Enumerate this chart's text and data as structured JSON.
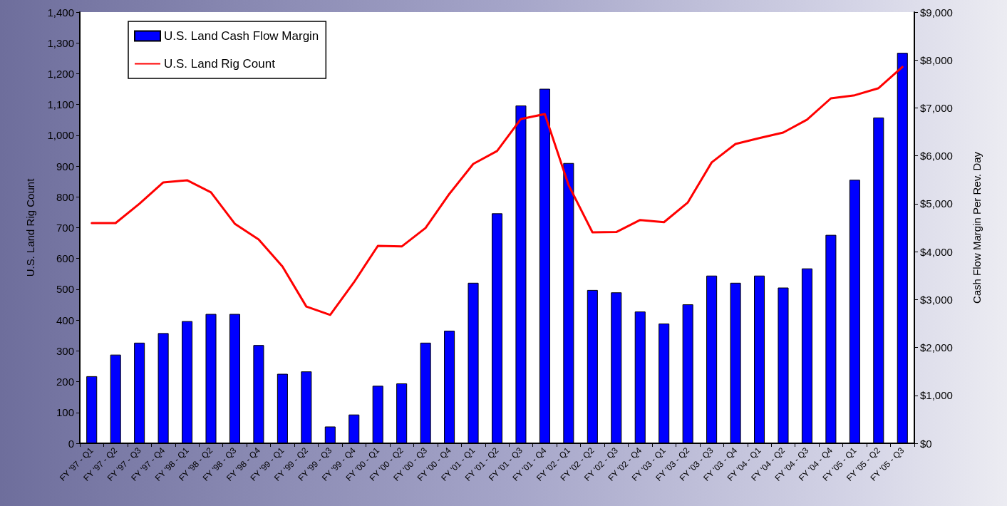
{
  "chart_data": {
    "type": "bar",
    "categories": [
      "FY '97 - Q1",
      "FY '97 - Q2",
      "FY '97 - Q3",
      "FY '97 - Q4",
      "FY '98 - Q1",
      "FY '98 - Q2",
      "FY '98 - Q3",
      "FY '98 - Q4",
      "FY '99 - Q1",
      "FY '99 - Q2",
      "FY '99 - Q3",
      "FY '99 - Q4",
      "FY '00 - Q1",
      "FY '00 - Q2",
      "FY '00 - Q3",
      "FY '00 - Q4",
      "FY '01 - Q1",
      "FY '01 - Q2",
      "FY '01 - Q3",
      "FY '01 - Q4",
      "FY '02 - Q1",
      "FY '02 - Q2",
      "FY '02 - Q3",
      "FY '02 - Q4",
      "FY '03 - Q1",
      "FY '03 - Q2",
      "FY '03 - Q3",
      "FY '03 - Q4",
      "FY '04 - Q1",
      "FY '04 - Q2",
      "FY '04 - Q3",
      "FY '04 - Q4",
      "FY '05 - Q1",
      "FY '05 - Q2",
      "FY '05 - Q3"
    ],
    "series": [
      {
        "name": "U.S. Land Cash Flow Margin",
        "axis": "y2",
        "color": "#0000ff",
        "values": [
          1400,
          1850,
          2100,
          2300,
          2550,
          2700,
          2700,
          2050,
          1450,
          1500,
          350,
          600,
          1200,
          1250,
          2100,
          2350,
          3350,
          4800,
          7050,
          7400,
          5850,
          3200,
          3150,
          2750,
          2500,
          2900,
          3500,
          3350,
          3500,
          3250,
          3650,
          4350,
          5500,
          6800,
          8150
        ]
      },
      {
        "name": "U.S. Land Rig Count",
        "type": "line",
        "axis": "y",
        "color": "#ff0000",
        "values": [
          715,
          715,
          778,
          847,
          854,
          815,
          713,
          662,
          574,
          444,
          417,
          523,
          641,
          639,
          699,
          810,
          907,
          949,
          1053,
          1069,
          838,
          685,
          686,
          725,
          718,
          782,
          912,
          972,
          991,
          1009,
          1051,
          1120,
          1130,
          1153,
          1222
        ]
      }
    ],
    "ylabel": "U.S. Land Rig Count",
    "y2label": "Cash Flow Margin Per Rev. Day",
    "ylim": [
      0,
      1400
    ],
    "yticks": [
      0,
      100,
      200,
      300,
      400,
      500,
      600,
      700,
      800,
      900,
      {
        "value": 1000,
        "label": "1,000"
      },
      {
        "value": 1100,
        "label": "1,100"
      },
      {
        "value": 1200,
        "label": "1,200"
      },
      {
        "value": 1300,
        "label": "1,300"
      },
      {
        "value": 1400,
        "label": "1,400"
      }
    ],
    "y2lim": [
      0,
      9000
    ],
    "y2ticks": [
      {
        "value": 0,
        "label": "$0"
      },
      {
        "value": 1000,
        "label": "$1,000"
      },
      {
        "value": 2000,
        "label": "$2,000"
      },
      {
        "value": 3000,
        "label": "$3,000"
      },
      {
        "value": 4000,
        "label": "$4,000"
      },
      {
        "value": 5000,
        "label": "$5,000"
      },
      {
        "value": 6000,
        "label": "$6,000"
      },
      {
        "value": 7000,
        "label": "$7,000"
      },
      {
        "value": 8000,
        "label": "$8,000"
      },
      {
        "value": 9000,
        "label": "$9,000"
      }
    ],
    "legend": "top left",
    "grid": false,
    "marker": "none",
    "line_style": "solid"
  }
}
